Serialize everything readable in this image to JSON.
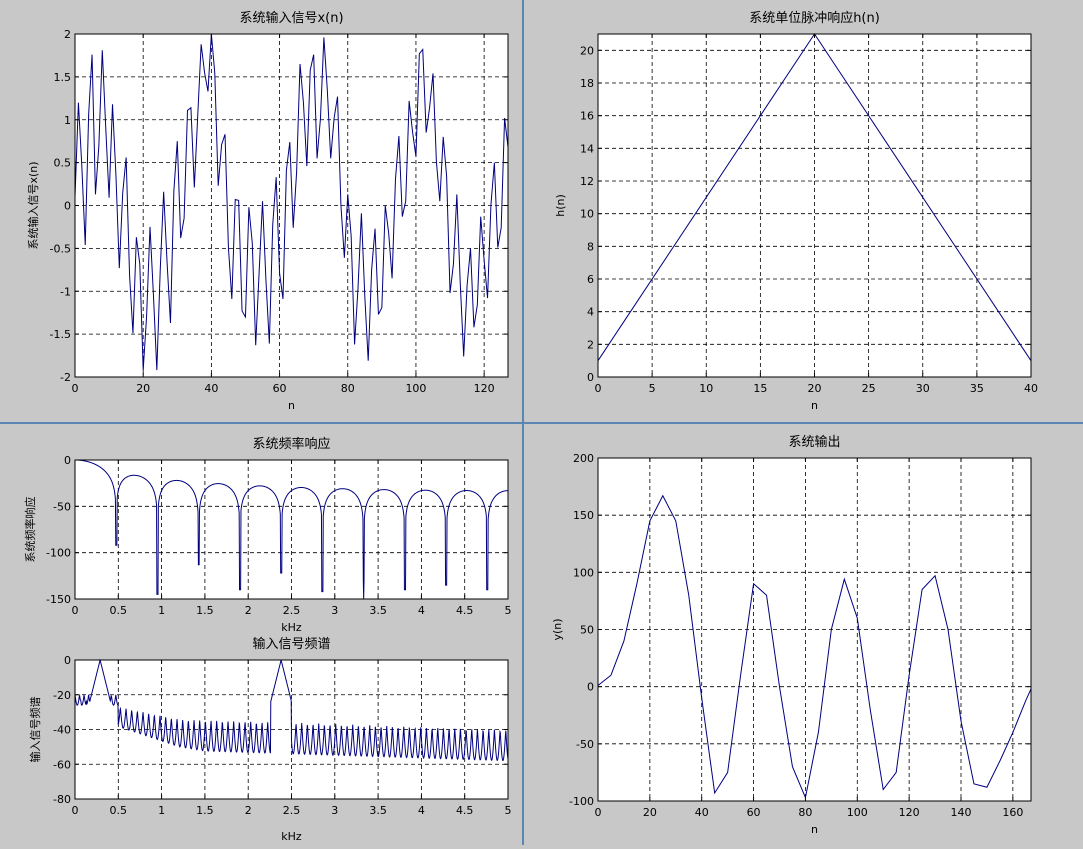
{
  "colors": {
    "background": "#c8c8c8",
    "axes_bg": "#ffffff",
    "line": "#00007f",
    "grid": "#000000",
    "divider": "#5a86b3"
  },
  "chart_data": [
    {
      "id": "input",
      "type": "line",
      "title": "系统输入信号x(n)",
      "xlabel": "n",
      "ylabel": "系统输入信号x(n)",
      "xlim": [
        0,
        127
      ],
      "ylim": [
        -2,
        2
      ],
      "xticks": [
        0,
        20,
        40,
        60,
        80,
        100,
        120
      ],
      "yticks": [
        -2,
        -1.5,
        -1,
        -0.5,
        0,
        0.5,
        1,
        1.5,
        2
      ],
      "grid": true,
      "series": [
        {
          "x_start": 0,
          "x_step": 1,
          "y": [
            0.1,
            1.2,
            0.46,
            -0.46,
            1.06,
            1.76,
            0.13,
            0.7,
            1.81,
            0.92,
            0.09,
            1.18,
            0.36,
            -0.73,
            0.15,
            0.56,
            -0.81,
            -1.49,
            -0.37,
            -0.68,
            -1.92,
            -1.29,
            -0.25,
            -1.04,
            -1.92,
            -0.75,
            0.16,
            -0.66,
            -1.37,
            0.17,
            0.75,
            -0.38,
            -0.15,
            1.11,
            1.14,
            0.21,
            1.05,
            1.88,
            1.55,
            1.33,
            2.0,
            1.54,
            0.23,
            0.71,
            0.83,
            -0.49,
            -1.09,
            0.07,
            0.06,
            -1.23,
            -1.3,
            -0.02,
            -0.44,
            -1.63,
            -0.78,
            0.05,
            -0.87,
            -1.61,
            -0.22,
            0.33,
            -0.79,
            -1.09,
            0.41,
            0.74,
            -0.26,
            0.39,
            1.65,
            1.2,
            0.46,
            1.58,
            1.76,
            0.55,
            1.02,
            1.96,
            1.35,
            0.55,
            1.02,
            1.27,
            0.0,
            -0.61,
            0.13,
            -0.36,
            -1.62,
            -0.97,
            -0.09,
            -1.06,
            -1.81,
            -0.75,
            -0.27,
            -1.27,
            -1.19,
            0.0,
            -0.32,
            -0.85,
            0.31,
            0.81,
            -0.13,
            0.05,
            1.22,
            0.86,
            0.57,
            1.77,
            1.82,
            0.85,
            1.14,
            1.54,
            0.51,
            0.05,
            0.8,
            0.34,
            -1.02,
            -0.68,
            0.13,
            -0.91,
            -1.76,
            -0.93,
            -0.5,
            -1.42,
            -1.16,
            -0.13,
            -0.64,
            -1.08,
            0.01,
            0.5,
            -0.49,
            -0.26,
            1.02,
            0.68
          ]
        }
      ]
    },
    {
      "id": "impulse",
      "type": "line",
      "title": "系统单位脉冲响应h(n)",
      "xlabel": "n",
      "ylabel": "h(n)",
      "xlim": [
        0,
        40
      ],
      "ylim": [
        0,
        21
      ],
      "xticks": [
        0,
        5,
        10,
        15,
        20,
        25,
        30,
        35,
        40
      ],
      "yticks": [
        0,
        2,
        4,
        6,
        8,
        10,
        12,
        14,
        16,
        18,
        20
      ],
      "grid": true,
      "series": [
        {
          "x": [
            0,
            20,
            40
          ],
          "y": [
            1,
            21,
            1
          ]
        }
      ]
    },
    {
      "id": "freqresp",
      "type": "line",
      "title": "系统频率响应",
      "xlabel": "kHz",
      "ylabel": "系统频率响应",
      "xlim": [
        0,
        5
      ],
      "ylim": [
        -150,
        0
      ],
      "xticks": [
        0,
        0.5,
        1,
        1.5,
        2,
        2.5,
        3,
        3.5,
        4,
        4.5,
        5
      ],
      "yticks": [
        -150,
        -100,
        -50,
        0
      ],
      "grid": true,
      "nulls_khz": [
        0.476,
        0.952,
        1.429,
        1.905,
        2.381,
        2.857,
        3.333,
        3.81,
        4.286,
        4.762
      ],
      "null_depth": [
        -92,
        -145,
        -113,
        -140,
        -122,
        -142,
        -130,
        -140,
        -135,
        -140
      ]
    },
    {
      "id": "inputspec",
      "type": "line",
      "title": "输入信号频谱",
      "xlabel": "kHz",
      "ylabel": "输入信号频谱",
      "xlim": [
        0,
        5
      ],
      "ylim": [
        -80,
        0
      ],
      "xticks": [
        0,
        0.5,
        1,
        1.5,
        2,
        2.5,
        3,
        3.5,
        4,
        4.5,
        5
      ],
      "yticks": [
        -80,
        -60,
        -40,
        -20,
        0
      ],
      "grid": true,
      "peaks_khz": [
        0.29,
        2.38
      ]
    },
    {
      "id": "output",
      "type": "line",
      "title": "系统输出",
      "xlabel": "n",
      "ylabel": "y(n)",
      "xlim": [
        0,
        167
      ],
      "ylim": [
        -100,
        200
      ],
      "xticks": [
        0,
        20,
        40,
        60,
        80,
        100,
        120,
        140,
        160
      ],
      "yticks": [
        -100,
        -50,
        0,
        50,
        100,
        150,
        200
      ],
      "grid": true,
      "series": [
        {
          "x": [
            0,
            5,
            10,
            15,
            20,
            25,
            30,
            35,
            40,
            45,
            50,
            55,
            60,
            65,
            70,
            75,
            80,
            85,
            90,
            95,
            100,
            105,
            110,
            115,
            120,
            125,
            130,
            135,
            140,
            145,
            150,
            155,
            160,
            165,
            167
          ],
          "y": [
            1,
            10,
            40,
            90,
            145,
            167,
            145,
            80,
            -10,
            -93,
            -75,
            10,
            90,
            80,
            0,
            -70,
            -97,
            -40,
            50,
            94,
            60,
            -20,
            -90,
            -75,
            10,
            85,
            97,
            50,
            -30,
            -85,
            -88,
            -65,
            -40,
            -12,
            -2
          ]
        }
      ]
    }
  ]
}
